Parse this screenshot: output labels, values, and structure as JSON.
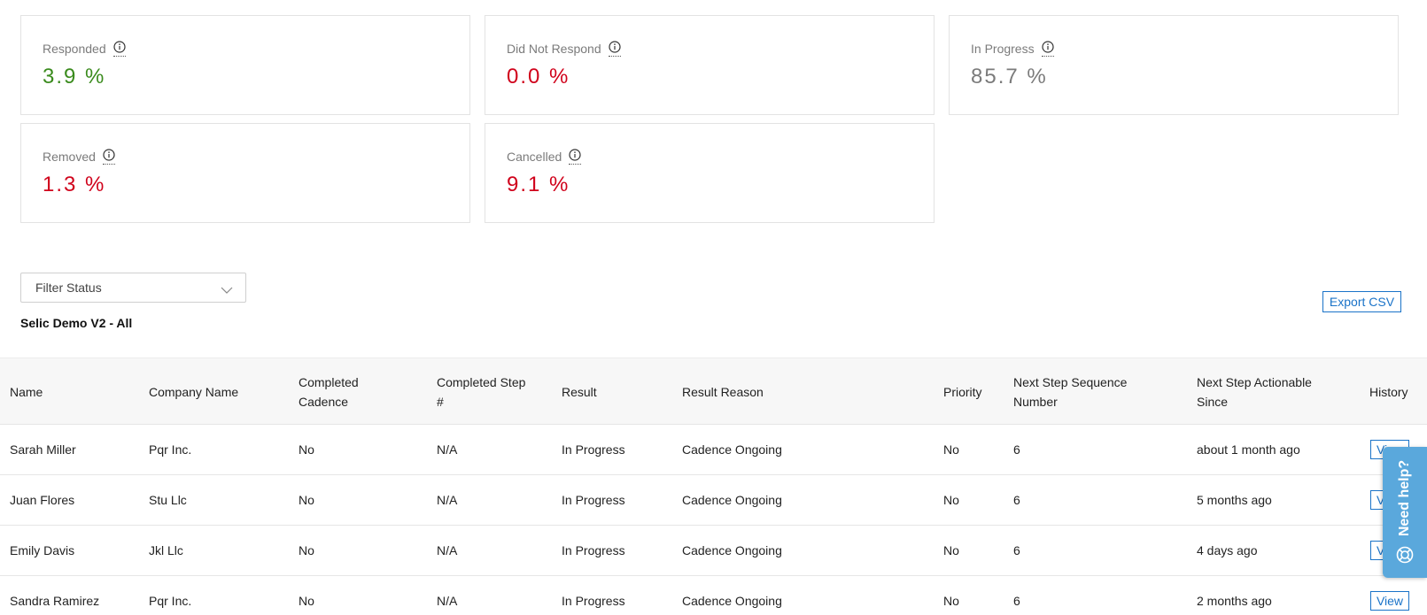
{
  "stats": [
    {
      "label": "Responded",
      "value": "3.9 %",
      "color": "#3a8b1d"
    },
    {
      "label": "Did Not Respond",
      "value": "0.0 %",
      "color": "#d0021b"
    },
    {
      "label": "In Progress",
      "value": "85.7 %",
      "color": "#7b7b7b"
    },
    {
      "label": "Removed",
      "value": "1.3 %",
      "color": "#d0021b"
    },
    {
      "label": "Cancelled",
      "value": "9.1 %",
      "color": "#d0021b"
    }
  ],
  "filter": {
    "label": "Filter Status"
  },
  "list_title": "Selic Demo V2 - All",
  "export_label": "Export CSV",
  "table": {
    "headers": {
      "name": "Name",
      "company": "Company Name",
      "completed_cadence": "Completed Cadence",
      "completed_step": "Completed Step #",
      "result": "Result",
      "result_reason": "Result Reason",
      "priority": "Priority",
      "next_step_seq": "Next Step Sequence Number",
      "next_step_since": "Next Step Actionable Since",
      "history": "History"
    },
    "rows": [
      {
        "name": "Sarah Miller",
        "company": "Pqr Inc.",
        "completed_cadence": "No",
        "completed_step": "N/A",
        "result": "In Progress",
        "result_reason": "Cadence Ongoing",
        "priority": "No",
        "next_step_seq": "6",
        "next_step_since": "about 1 month ago",
        "history": "View"
      },
      {
        "name": "Juan Flores",
        "company": "Stu Llc",
        "completed_cadence": "No",
        "completed_step": "N/A",
        "result": "In Progress",
        "result_reason": "Cadence Ongoing",
        "priority": "No",
        "next_step_seq": "6",
        "next_step_since": "5 months ago",
        "history": "View"
      },
      {
        "name": "Emily Davis",
        "company": "Jkl Llc",
        "completed_cadence": "No",
        "completed_step": "N/A",
        "result": "In Progress",
        "result_reason": "Cadence Ongoing",
        "priority": "No",
        "next_step_seq": "6",
        "next_step_since": "4 days ago",
        "history": "View"
      },
      {
        "name": "Sandra Ramirez",
        "company": "Pqr Inc.",
        "completed_cadence": "No",
        "completed_step": "N/A",
        "result": "In Progress",
        "result_reason": "Cadence Ongoing",
        "priority": "No",
        "next_step_seq": "6",
        "next_step_since": "2 months ago",
        "history": "View"
      }
    ]
  },
  "help": {
    "label": "Need help?"
  },
  "icons": {
    "info": "info-icon",
    "chevron": "chevron-down-icon",
    "help": "lifebuoy-icon"
  },
  "colors": {
    "accent": "#1a73c8",
    "help_tab": "#5aa8dc"
  }
}
